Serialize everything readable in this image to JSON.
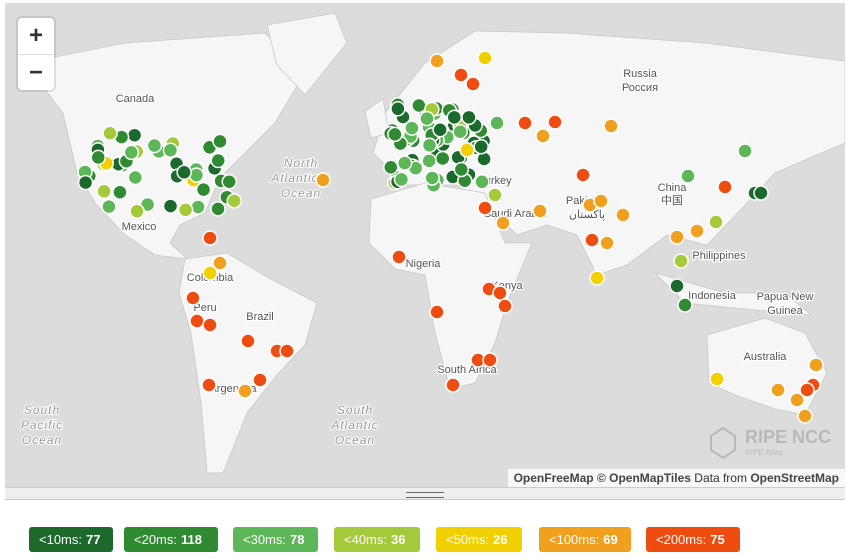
{
  "map": {
    "zoom_in": "+",
    "zoom_out": "−",
    "labels": [
      "Canada",
      "Russia",
      "Россия",
      "North",
      "Atlantic",
      "Ocean",
      "Mexico",
      "Colombia",
      "Peru",
      "Brazil",
      "Argentina",
      "South",
      "Pacific",
      "Ocean",
      "South",
      "Atlantic",
      "Ocean",
      "Nigeria",
      "Kenya",
      "South Africa",
      "Saudi Arabia",
      "Pakistan",
      "پاکستان",
      "China",
      "中国",
      "Philippines",
      "Indonesia",
      "Papua New",
      "Guinea",
      "Australia",
      "Turkey"
    ],
    "watermark": {
      "title": "RIPE NCC",
      "subtitle": "RIPE Atlas"
    },
    "attribution": {
      "tiles": "OpenFreeMap",
      "copyright": "© OpenMapTiles",
      "data_prefix": "Data from",
      "data_source": "OpenStreetMap"
    }
  },
  "legend": [
    {
      "label": "<10ms:",
      "count": "77",
      "color": "#1b6a2c"
    },
    {
      "label": "<20ms:",
      "count": "118",
      "color": "#2f8a32"
    },
    {
      "label": "<30ms:",
      "count": "78",
      "color": "#5db657"
    },
    {
      "label": "<40ms:",
      "count": "36",
      "color": "#a4c93b"
    },
    {
      "label": "<50ms:",
      "count": "26",
      "color": "#f1cf00"
    },
    {
      "label": "<100ms:",
      "count": "69",
      "color": "#f0a01e"
    },
    {
      "label": "<200ms:",
      "count": "75",
      "color": "#ef4c12"
    }
  ]
}
